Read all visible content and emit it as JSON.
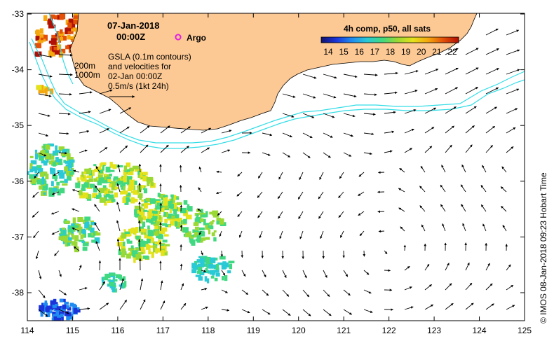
{
  "date_line": "07-Jan-2018",
  "time_line": "00:00Z",
  "argo_label": "Argo",
  "isobath_labels": [
    "200m",
    "1000m"
  ],
  "info_lines": [
    "GSLA (0.1m contours)",
    "and velocities for",
    "02-Jan 00:00Z",
    "0.5m/s (1kt 24h)"
  ],
  "colorbar": {
    "title": "4h comp, p50, all sats",
    "ticks": [
      "14",
      "15",
      "16",
      "17",
      "18",
      "19",
      "20",
      "21",
      "22"
    ]
  },
  "x_ticks": [
    "114",
    "115",
    "116",
    "117",
    "118",
    "119",
    "120",
    "121",
    "122",
    "123",
    "124",
    "125"
  ],
  "y_ticks": [
    "-33",
    "-34",
    "-35",
    "-36",
    "-37",
    "-38"
  ],
  "credit": "© IMOS 08-Jan-2018 09:23 Hobart Time",
  "colors": {
    "land": "#FCC893",
    "isobath": "#33DDE6",
    "argo": "#E020E0",
    "colormap": [
      "#11136E",
      "#1A34D9",
      "#1F8BF0",
      "#29C9D6",
      "#40D880",
      "#9AD834",
      "#E3E21B",
      "#F5A70E",
      "#E35008",
      "#B01005"
    ]
  }
}
